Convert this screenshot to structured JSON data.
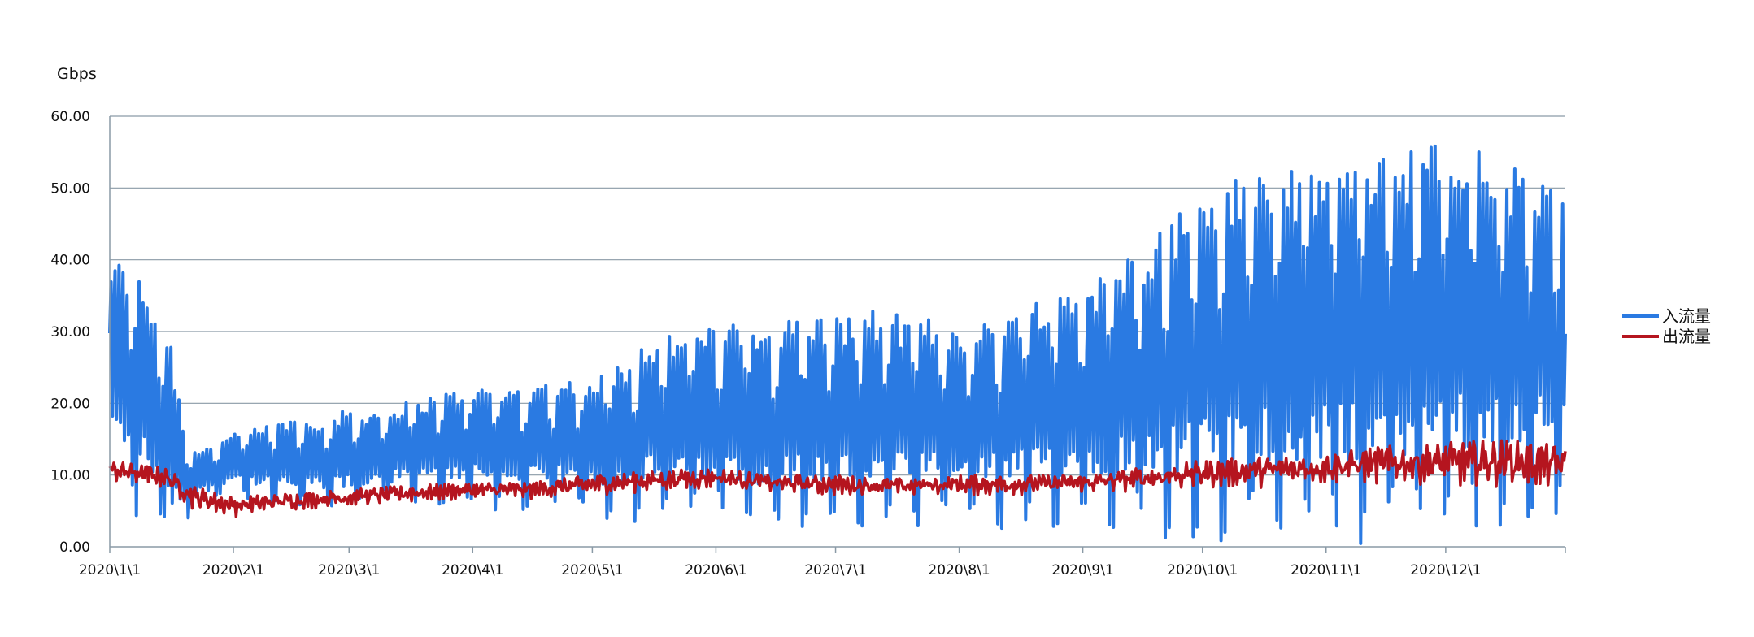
{
  "chart_data": {
    "type": "line",
    "title": "",
    "ylabel": "Gbps",
    "xlabel": "",
    "ylim": [
      0,
      60
    ],
    "y_ticks": [
      "0.00",
      "10.00",
      "20.00",
      "30.00",
      "40.00",
      "50.00",
      "60.00"
    ],
    "x_range": [
      "2020-01-01",
      "2020-12-31"
    ],
    "x_ticks": [
      {
        "label": "2020\\1\\1",
        "date": "2020-01-01"
      },
      {
        "label": "2020\\2\\1",
        "date": "2020-02-01"
      },
      {
        "label": "2020\\3\\1",
        "date": "2020-03-01"
      },
      {
        "label": "2020\\4\\1",
        "date": "2020-04-01"
      },
      {
        "label": "2020\\5\\1",
        "date": "2020-05-01"
      },
      {
        "label": "2020\\6\\1",
        "date": "2020-06-01"
      },
      {
        "label": "2020\\7\\1",
        "date": "2020-07-01"
      },
      {
        "label": "2020\\8\\1",
        "date": "2020-08-01"
      },
      {
        "label": "2020\\9\\1",
        "date": "2020-09-01"
      },
      {
        "label": "2020\\10\\1",
        "date": "2020-10-01"
      },
      {
        "label": "2020\\11\\1",
        "date": "2020-11-01"
      },
      {
        "label": "2020\\12\\1",
        "date": "2020-12-01"
      }
    ],
    "grid": true,
    "legend_position": "right",
    "series": [
      {
        "name": "入流量",
        "color": "#2a7ae2",
        "x": [
          "2020-01-01",
          "2020-01-04",
          "2020-01-08",
          "2020-01-12",
          "2020-01-16",
          "2020-01-20",
          "2020-01-24",
          "2020-01-28",
          "2020-02-01",
          "2020-02-08",
          "2020-02-15",
          "2020-02-22",
          "2020-03-01",
          "2020-03-08",
          "2020-03-15",
          "2020-03-22",
          "2020-04-01",
          "2020-04-08",
          "2020-04-15",
          "2020-04-22",
          "2020-05-01",
          "2020-05-08",
          "2020-05-15",
          "2020-05-22",
          "2020-06-01",
          "2020-06-08",
          "2020-06-15",
          "2020-06-22",
          "2020-07-01",
          "2020-07-08",
          "2020-07-15",
          "2020-07-22",
          "2020-08-01",
          "2020-08-08",
          "2020-08-15",
          "2020-08-22",
          "2020-09-01",
          "2020-09-08",
          "2020-09-15",
          "2020-09-22",
          "2020-10-01",
          "2020-10-08",
          "2020-10-15",
          "2020-10-22",
          "2020-11-01",
          "2020-11-08",
          "2020-11-15",
          "2020-11-22",
          "2020-12-01",
          "2020-12-08",
          "2020-12-15",
          "2020-12-22",
          "2020-12-31"
        ],
        "high": [
          38,
          37,
          36,
          32,
          28,
          14,
          13,
          14,
          15,
          16,
          17,
          17,
          18,
          18,
          19,
          20,
          21,
          21,
          21,
          22,
          22,
          24,
          27,
          28,
          29,
          29,
          29,
          30,
          30,
          31,
          30,
          30,
          29,
          29,
          31,
          33,
          34,
          36,
          39,
          42,
          46,
          47,
          49,
          49,
          50,
          51,
          52,
          52,
          52,
          52,
          50,
          48,
          46
        ],
        "low": [
          18,
          16,
          14,
          12,
          8,
          7,
          8,
          9,
          10,
          9,
          9,
          9,
          9,
          10,
          10,
          10,
          11,
          10,
          10,
          10,
          10,
          10,
          11,
          11,
          12,
          11,
          11,
          11,
          11,
          11,
          11,
          11,
          11,
          11,
          11,
          12,
          13,
          13,
          14,
          14,
          14,
          15,
          16,
          16,
          16,
          16,
          17,
          17,
          18,
          18,
          18,
          18,
          17
        ]
      },
      {
        "name": "出流量",
        "color": "#b5151f",
        "x": [
          "2020-01-01",
          "2020-01-08",
          "2020-01-15",
          "2020-01-22",
          "2020-02-01",
          "2020-02-15",
          "2020-03-01",
          "2020-03-15",
          "2020-04-01",
          "2020-04-15",
          "2020-05-01",
          "2020-05-15",
          "2020-06-01",
          "2020-06-15",
          "2020-07-01",
          "2020-07-15",
          "2020-08-01",
          "2020-08-15",
          "2020-09-01",
          "2020-09-15",
          "2020-10-01",
          "2020-10-15",
          "2020-11-01",
          "2020-11-15",
          "2020-12-01",
          "2020-12-15",
          "2020-12-31"
        ],
        "high": [
          12,
          11.5,
          11,
          8.5,
          7,
          7.5,
          8,
          8.5,
          9,
          9,
          10,
          10.5,
          11,
          10,
          10,
          9.5,
          10,
          10,
          10,
          11,
          12,
          12.5,
          13,
          14,
          14.5,
          15,
          14
        ],
        "low": [
          9,
          8.5,
          8,
          5,
          4,
          5,
          5.5,
          6,
          6.5,
          6.5,
          7,
          7.5,
          8,
          7.5,
          7,
          7,
          7,
          7,
          7.5,
          7.5,
          8,
          8,
          8.5,
          8.5,
          8,
          8,
          8
        ]
      }
    ]
  }
}
